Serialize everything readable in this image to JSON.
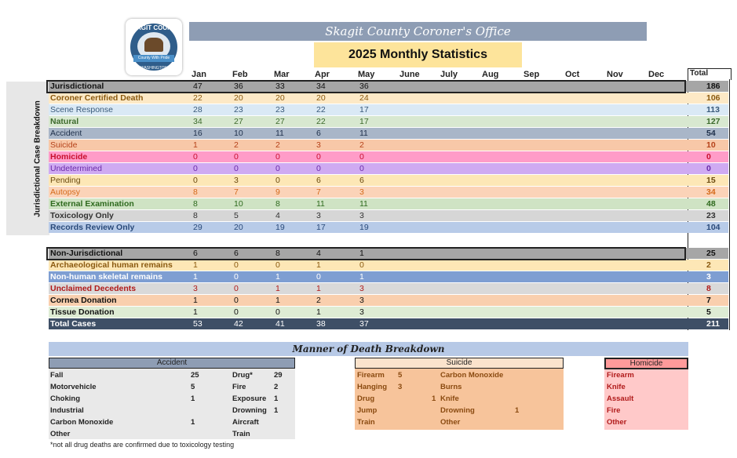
{
  "office": "Skagit County Coroner's Office",
  "title": "2025 Monthly Statistics",
  "logo": {
    "top": "SKAGIT COUNTY",
    "banner": "County With Pride",
    "bottom": "WASHINGTON"
  },
  "side_label": "Jurisdictional Case Breakdown",
  "months": [
    "Jan",
    "Feb",
    "Mar",
    "Apr",
    "May",
    "June",
    "July",
    "Aug",
    "Sep",
    "Oct",
    "Nov",
    "Dec"
  ],
  "total_label": "Total",
  "rows": [
    {
      "label": "Jurisdictional",
      "values": [
        "47",
        "36",
        "33",
        "34",
        "36"
      ],
      "total": "186",
      "bg": "#a6a6a6",
      "color": "#111",
      "bold": true
    },
    {
      "label": "Coroner Certified Death",
      "values": [
        "22",
        "20",
        "20",
        "20",
        "24"
      ],
      "total": "106",
      "bg": "#fde9c6",
      "color": "#8a5a10",
      "bold": true
    },
    {
      "label": "Scene Response",
      "values": [
        "28",
        "23",
        "23",
        "22",
        "17"
      ],
      "total": "113",
      "bg": "#dae9f5",
      "color": "#3a5a7a",
      "bold": false
    },
    {
      "label": "Natural",
      "values": [
        "34",
        "27",
        "27",
        "22",
        "17"
      ],
      "total": "127",
      "bg": "#d8e8d0",
      "color": "#3c6a2c",
      "bold": true
    },
    {
      "label": "Accident",
      "values": [
        "16",
        "10",
        "11",
        "6",
        "11"
      ],
      "total": "54",
      "bg": "#a9b6c8",
      "color": "#1e2f4a",
      "bold": false
    },
    {
      "label": "Suicide",
      "values": [
        "1",
        "2",
        "2",
        "3",
        "2"
      ],
      "total": "10",
      "bg": "#f8c8a8",
      "color": "#b5421a",
      "bold": false
    },
    {
      "label": "Homicide",
      "values": [
        "0",
        "0",
        "0",
        "0",
        "0"
      ],
      "total": "0",
      "bg": "#ff9cc8",
      "color": "#c8102e",
      "bold": true
    },
    {
      "label": "Undetermined",
      "values": [
        "0",
        "0",
        "0",
        "0",
        "0"
      ],
      "total": "0",
      "bg": "#cfaaf2",
      "color": "#6a2aa8",
      "bold": false
    },
    {
      "label": "Pending",
      "values": [
        "0",
        "3",
        "0",
        "6",
        "6"
      ],
      "total": "15",
      "bg": "#fde7b6",
      "color": "#6a4a10",
      "bold": false
    },
    {
      "label": "Autopsy",
      "values": [
        "8",
        "7",
        "9",
        "7",
        "3"
      ],
      "total": "34",
      "bg": "#fbd3b8",
      "color": "#d46a1a",
      "bold": false
    },
    {
      "label": "External Examination",
      "values": [
        "8",
        "10",
        "8",
        "11",
        "11"
      ],
      "total": "48",
      "bg": "#cfe3c4",
      "color": "#2e6a1e",
      "bold": true
    },
    {
      "label": "Toxicology Only",
      "values": [
        "8",
        "5",
        "4",
        "3",
        "3"
      ],
      "total": "23",
      "bg": "#d6d6d6",
      "color": "#333",
      "bold": true
    },
    {
      "label": "Records Review Only",
      "values": [
        "29",
        "20",
        "19",
        "17",
        "19"
      ],
      "total": "104",
      "bg": "#b8cbe8",
      "color": "#2a4a7a",
      "bold": true
    }
  ],
  "rows2": [
    {
      "label": "Non-Jurisdictional",
      "values": [
        "6",
        "6",
        "8",
        "4",
        "1"
      ],
      "total": "25",
      "bg": "#a6a6a6",
      "color": "#111",
      "bold": true
    },
    {
      "label": "Archaeological human remains",
      "values": [
        "1",
        "0",
        "0",
        "1",
        "0"
      ],
      "total": "2",
      "bg": "#fde7b6",
      "color": "#8a5a10",
      "bold": true
    },
    {
      "label": "Non-human skeletal remains",
      "values": [
        "1",
        "0",
        "1",
        "0",
        "1"
      ],
      "total": "3",
      "bg": "#7e9ed2",
      "color": "#fff",
      "bold": true
    },
    {
      "label": "Unclaimed Decedents",
      "values": [
        "3",
        "0",
        "1",
        "1",
        "3"
      ],
      "total": "8",
      "bg": "#d9d9d9",
      "color": "#b01a1a",
      "bold": true
    },
    {
      "label": "Cornea Donation",
      "values": [
        "1",
        "0",
        "1",
        "2",
        "3"
      ],
      "total": "7",
      "bg": "#f9cfae",
      "color": "#111",
      "bold": true
    },
    {
      "label": "Tissue Donation",
      "values": [
        "1",
        "0",
        "0",
        "1",
        "3"
      ],
      "total": "5",
      "bg": "#deecd4",
      "color": "#111",
      "bold": true
    },
    {
      "label": "Total Cases",
      "values": [
        "53",
        "42",
        "41",
        "38",
        "37"
      ],
      "total": "211",
      "bg": "#3e4f66",
      "color": "#fff",
      "bold": true
    }
  ],
  "manner": {
    "title": "Manner of Death Breakdown",
    "accident": {
      "title": "Accident",
      "left": [
        {
          "label": "Fall",
          "value": "25"
        },
        {
          "label": "Motorvehicle",
          "value": "5"
        },
        {
          "label": "Choking",
          "value": "1"
        },
        {
          "label": "Industrial",
          "value": ""
        },
        {
          "label": "Carbon Monoxide",
          "value": "1"
        },
        {
          "label": "Other",
          "value": ""
        }
      ],
      "right": [
        {
          "label": "Drug*",
          "value": "29"
        },
        {
          "label": "Fire",
          "value": "2"
        },
        {
          "label": "Exposure",
          "value": "1"
        },
        {
          "label": "Drowning",
          "value": "1"
        },
        {
          "label": "Aircraft",
          "value": ""
        },
        {
          "label": "Train",
          "value": ""
        }
      ]
    },
    "suicide": {
      "title": "Suicide",
      "left": [
        {
          "label": "Firearm",
          "value": "5"
        },
        {
          "label": "Hanging",
          "value": "3"
        },
        {
          "label": "Drug",
          "value": "1"
        },
        {
          "label": "Jump",
          "value": ""
        },
        {
          "label": "Train",
          "value": ""
        }
      ],
      "right": [
        {
          "label": "Carbon Monoxide",
          "value": ""
        },
        {
          "label": "Burns",
          "value": ""
        },
        {
          "label": "Knife",
          "value": ""
        },
        {
          "label": "Drowning",
          "value": "1"
        },
        {
          "label": "Other",
          "value": ""
        }
      ]
    },
    "homicide": {
      "title": "Homicide",
      "items": [
        "Firearm",
        "Knife",
        "Assault",
        "Fire",
        "Other"
      ]
    }
  },
  "footnote": "*not all drug deaths are confirmed due to toxicology testing"
}
